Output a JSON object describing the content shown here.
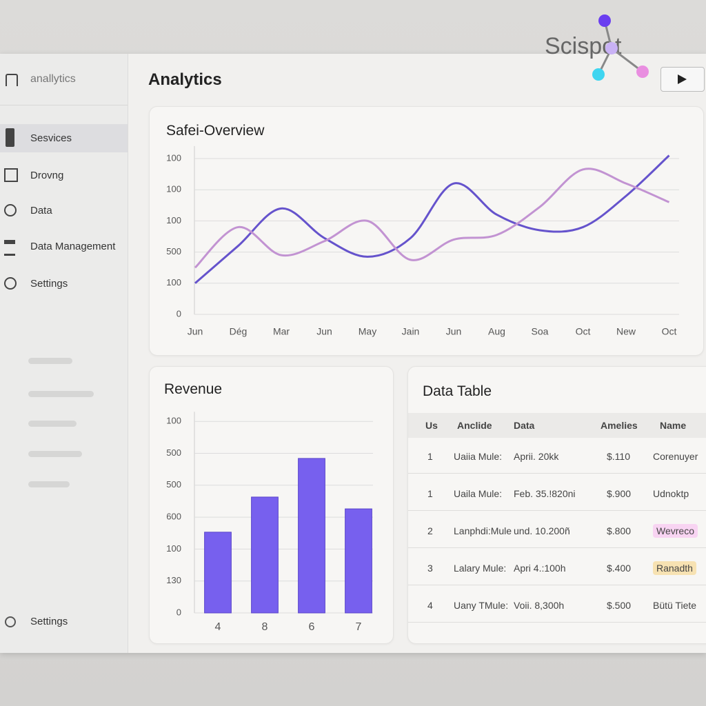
{
  "app": {
    "logo": "Scispot",
    "title": "Analytics",
    "sidebar": {
      "top": "anallytics",
      "items": [
        "Sesvices",
        "Drovng",
        "Data",
        "Data Management",
        "Settings"
      ],
      "bottom": "Settings"
    }
  },
  "chart_data": [
    {
      "type": "line",
      "title": "Safei-Overview",
      "categories": [
        "Jun",
        "Dég",
        "Mar",
        "Jun",
        "May",
        "Jain",
        "Jun",
        "Aug",
        "Soa",
        "Oct",
        "New",
        "Oct"
      ],
      "ylim": [
        0,
        5.4
      ],
      "yticks": [
        0,
        {
          "value": 1,
          "label": "100"
        },
        {
          "value": 2,
          "label": "500"
        },
        {
          "value": 3,
          "label": "100"
        },
        {
          "value": 4,
          "label": "100"
        },
        {
          "value": 5,
          "label": "100"
        }
      ],
      "grid": true,
      "series": [
        {
          "color": "#6553cc",
          "values": [
            1.0,
            2.2,
            3.4,
            2.45,
            1.85,
            2.45,
            4.2,
            3.2,
            2.7,
            2.8,
            3.8,
            5.1
          ]
        },
        {
          "color": "#c293d2",
          "values": [
            1.5,
            2.8,
            1.9,
            2.35,
            3.0,
            1.75,
            2.4,
            2.55,
            3.45,
            4.65,
            4.2,
            3.6
          ]
        }
      ]
    },
    {
      "type": "bar",
      "title": "Revenue",
      "categories": [
        "4",
        "8",
        "6",
        "7"
      ],
      "values": [
        2.53,
        3.63,
        4.84,
        3.26
      ],
      "color": "#7760ee",
      "ylim": [
        0,
        6.3
      ],
      "yticks": [
        0,
        {
          "value": 1,
          "label": "130"
        },
        {
          "value": 2,
          "label": "100"
        },
        {
          "value": 3,
          "label": "600"
        },
        {
          "value": 4,
          "label": "500"
        },
        {
          "value": 5,
          "label": "500"
        },
        {
          "value": 6,
          "label": "100"
        }
      ],
      "grid": true
    }
  ],
  "table": {
    "title": "Data Table",
    "columns": [
      "Us",
      "Anclide",
      "Data",
      "Amelies",
      "Name"
    ],
    "rows": [
      [
        "1",
        "Uaiia Mule:",
        "Aprii. 20kk",
        "$.110",
        "Corenuyer"
      ],
      [
        "1",
        "Uaila Mule:",
        "Feb. 35.!820ni",
        "$.900",
        "Udnoktp"
      ],
      [
        "2",
        "Lanphdi:Mule",
        "und. 10.200ñ",
        "$.800",
        "Wevreco"
      ],
      [
        "3",
        "Lalary Mule:",
        "Apri 4.:100h",
        "$.400",
        "Ranadth"
      ],
      [
        "4",
        "Uany TMule:",
        "Voii. 8,300h",
        "$.500",
        "Bütü Tiete"
      ]
    ]
  }
}
